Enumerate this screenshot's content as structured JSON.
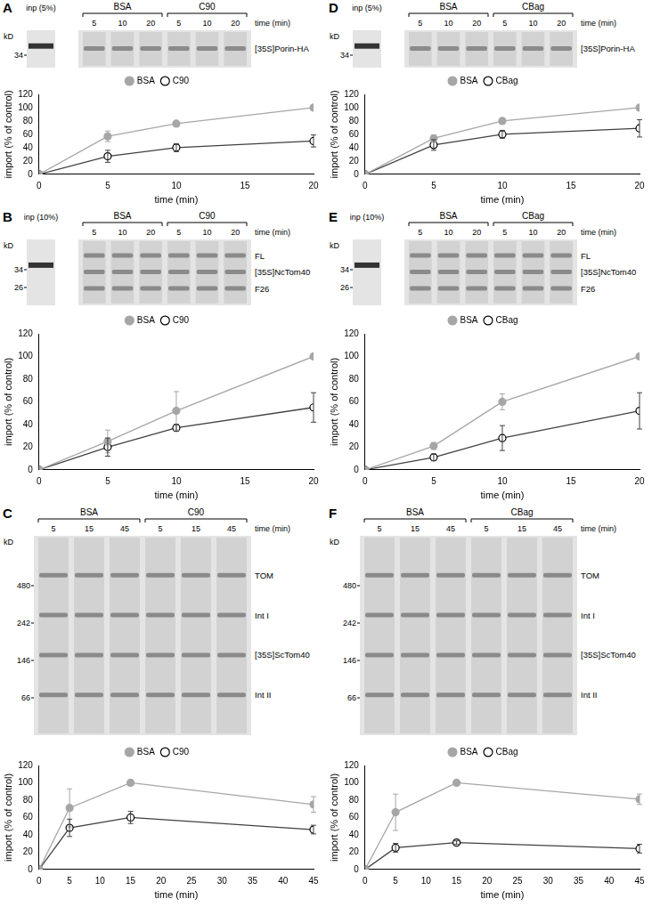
{
  "panels": [
    {
      "letter": "A",
      "gel": {
        "input": "inp (5%)",
        "groups": [
          {
            "name": "BSA",
            "lanes": [
              5,
              10,
              20
            ]
          },
          {
            "name": "C90",
            "lanes": [
              5,
              10,
              20
            ]
          }
        ],
        "time_label": "time (min)",
        "kd_label": "kD",
        "markers": [
          34
        ],
        "bands": [
          "[35S]Porin-HA"
        ]
      }
    },
    {
      "letter": "B",
      "gel": {
        "input": "inp (10%)",
        "groups": [
          {
            "name": "BSA",
            "lanes": [
              5,
              10,
              20
            ]
          },
          {
            "name": "C90",
            "lanes": [
              5,
              10,
              20
            ]
          }
        ],
        "time_label": "time (min)",
        "kd_label": "kD",
        "markers": [
          34,
          26
        ],
        "bands": [
          "FL",
          "[35S]NcTom40",
          "F26"
        ]
      }
    },
    {
      "letter": "C",
      "gel": {
        "input": null,
        "groups": [
          {
            "name": "BSA",
            "lanes": [
              5,
              15,
              45
            ]
          },
          {
            "name": "C90",
            "lanes": [
              5,
              15,
              45
            ]
          }
        ],
        "time_label": "time (min)",
        "kd_label": "kD",
        "markers": [
          480,
          242,
          146,
          66
        ],
        "bands": [
          "TOM",
          "Int I",
          "[35S]ScTom40",
          "Int II"
        ]
      }
    },
    {
      "letter": "D",
      "gel": {
        "input": "inp (5%)",
        "groups": [
          {
            "name": "BSA",
            "lanes": [
              5,
              10,
              20
            ]
          },
          {
            "name": "CBag",
            "lanes": [
              5,
              10,
              20
            ]
          }
        ],
        "time_label": "time (min)",
        "kd_label": "kD",
        "markers": [
          34
        ],
        "bands": [
          "[35S]Porin-HA"
        ]
      }
    },
    {
      "letter": "E",
      "gel": {
        "input": "inp (10%)",
        "groups": [
          {
            "name": "BSA",
            "lanes": [
              5,
              10,
              20
            ]
          },
          {
            "name": "CBag",
            "lanes": [
              5,
              10,
              20
            ]
          }
        ],
        "time_label": "time (min)",
        "kd_label": "kD",
        "markers": [
          34,
          26
        ],
        "bands": [
          "FL",
          "[35S]NcTom40",
          "F26"
        ]
      }
    },
    {
      "letter": "F",
      "gel": {
        "input": null,
        "groups": [
          {
            "name": "BSA",
            "lanes": [
              5,
              15,
              45
            ]
          },
          {
            "name": "CBag",
            "lanes": [
              5,
              15,
              45
            ]
          }
        ],
        "time_label": "time (min)",
        "kd_label": "kD",
        "markers": [
          480,
          242,
          146,
          66
        ],
        "bands": [
          "TOM",
          "Int I",
          "[35S]ScTom40",
          "Int II"
        ]
      }
    }
  ],
  "chart_data": [
    {
      "type": "line",
      "x": [
        0,
        5,
        10,
        20
      ],
      "xlim": [
        0,
        20
      ],
      "xticks": [
        0,
        5,
        10,
        15,
        20
      ],
      "ylim": [
        0,
        120
      ],
      "yticks": [
        0,
        20,
        40,
        60,
        80,
        100,
        120
      ],
      "x_label": "time (min)",
      "y_label": "import (% of control)",
      "legend": "top",
      "grid": false,
      "series": [
        {
          "name": "BSA",
          "color": "#a6a6a6",
          "marker": "filled",
          "values": [
            0,
            57,
            76,
            100
          ],
          "errors": [
            0,
            8,
            3,
            0
          ]
        },
        {
          "name": "C90",
          "color": "#404040",
          "marker": "open",
          "values": [
            0,
            27,
            40,
            50
          ],
          "errors": [
            0,
            9,
            6,
            9
          ]
        }
      ]
    },
    {
      "type": "line",
      "x": [
        0,
        5,
        10,
        20
      ],
      "xlim": [
        0,
        20
      ],
      "xticks": [
        0,
        5,
        10,
        15,
        20
      ],
      "ylim": [
        0,
        120
      ],
      "yticks": [
        0,
        20,
        40,
        60,
        80,
        100,
        120
      ],
      "x_label": "time (min)",
      "y_label": "import (% of control)",
      "legend": "top",
      "grid": false,
      "series": [
        {
          "name": "BSA",
          "color": "#a6a6a6",
          "marker": "filled",
          "values": [
            0,
            25,
            52,
            100
          ],
          "errors": [
            0,
            10,
            17,
            0
          ]
        },
        {
          "name": "C90",
          "color": "#404040",
          "marker": "open",
          "values": [
            0,
            20,
            37,
            55
          ],
          "errors": [
            0,
            8,
            3,
            13
          ]
        }
      ]
    },
    {
      "type": "line",
      "x": [
        0,
        5,
        15,
        45
      ],
      "xlim": [
        0,
        45
      ],
      "xticks": [
        0,
        5,
        10,
        15,
        20,
        25,
        30,
        35,
        40,
        45
      ],
      "ylim": [
        0,
        120
      ],
      "yticks": [
        0,
        20,
        40,
        60,
        80,
        100,
        120
      ],
      "x_label": "time (min)",
      "y_label": "import (% of control)",
      "legend": "top",
      "grid": false,
      "series": [
        {
          "name": "BSA",
          "color": "#a6a6a6",
          "marker": "filled",
          "values": [
            0,
            71,
            100,
            75
          ],
          "errors": [
            0,
            22,
            0,
            9
          ]
        },
        {
          "name": "C90",
          "color": "#404040",
          "marker": "open",
          "values": [
            0,
            48,
            60,
            46
          ],
          "errors": [
            0,
            10,
            7,
            5
          ]
        }
      ]
    },
    {
      "type": "line",
      "x": [
        0,
        5,
        10,
        20
      ],
      "xlim": [
        0,
        20
      ],
      "xticks": [
        0,
        5,
        10,
        15,
        20
      ],
      "ylim": [
        0,
        120
      ],
      "yticks": [
        0,
        20,
        40,
        60,
        80,
        100,
        120
      ],
      "x_label": "time (min)",
      "y_label": "import (% of control)",
      "legend": "top",
      "grid": false,
      "series": [
        {
          "name": "BSA",
          "color": "#a6a6a6",
          "marker": "filled",
          "values": [
            0,
            54,
            80,
            100
          ],
          "errors": [
            0,
            5,
            4,
            0
          ]
        },
        {
          "name": "CBag",
          "color": "#404040",
          "marker": "open",
          "values": [
            0,
            44,
            60,
            69
          ],
          "errors": [
            0,
            8,
            6,
            13
          ]
        }
      ]
    },
    {
      "type": "line",
      "x": [
        0,
        5,
        10,
        20
      ],
      "xlim": [
        0,
        20
      ],
      "xticks": [
        0,
        5,
        10,
        15,
        20
      ],
      "ylim": [
        0,
        120
      ],
      "yticks": [
        0,
        20,
        40,
        60,
        80,
        100,
        120
      ],
      "x_label": "time (min)",
      "y_label": "import (% of control)",
      "legend": "top",
      "grid": false,
      "series": [
        {
          "name": "BSA",
          "color": "#a6a6a6",
          "marker": "filled",
          "values": [
            0,
            21,
            60,
            100
          ],
          "errors": [
            0,
            3,
            7,
            0
          ]
        },
        {
          "name": "CBag",
          "color": "#404040",
          "marker": "open",
          "values": [
            0,
            11,
            28,
            52
          ],
          "errors": [
            0,
            3,
            11,
            16
          ]
        }
      ]
    },
    {
      "type": "line",
      "x": [
        0,
        5,
        15,
        45
      ],
      "xlim": [
        0,
        45
      ],
      "xticks": [
        0,
        5,
        10,
        15,
        20,
        25,
        30,
        35,
        40,
        45
      ],
      "ylim": [
        0,
        120
      ],
      "yticks": [
        0,
        20,
        40,
        60,
        80,
        100,
        120
      ],
      "x_label": "time (min)",
      "y_label": "import (% of control)",
      "legend": "top",
      "grid": false,
      "series": [
        {
          "name": "BSA",
          "color": "#a6a6a6",
          "marker": "filled",
          "values": [
            0,
            66,
            100,
            81
          ],
          "errors": [
            0,
            21,
            0,
            6
          ]
        },
        {
          "name": "CBag",
          "color": "#404040",
          "marker": "open",
          "values": [
            0,
            25,
            31,
            24
          ],
          "errors": [
            0,
            5,
            2,
            5
          ]
        }
      ]
    }
  ]
}
